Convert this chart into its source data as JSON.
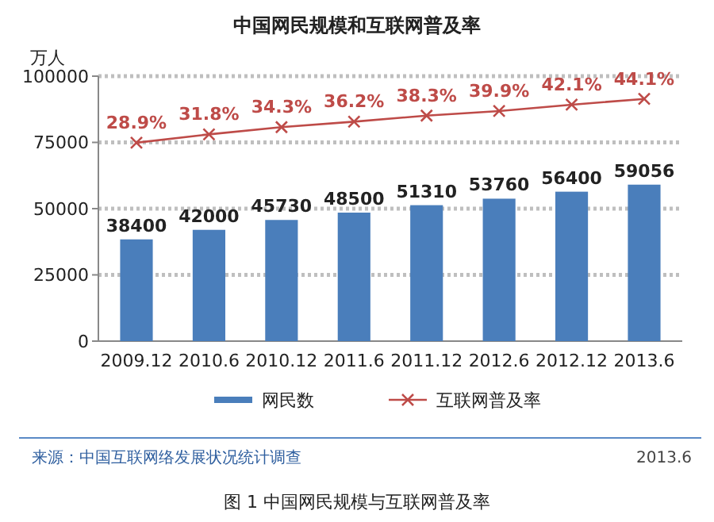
{
  "chart_data": {
    "type": "bar",
    "title": "中国网民规模和互联网普及率",
    "ylabel": "万人",
    "categories": [
      "2009.12",
      "2010.6",
      "2010.12",
      "2011.6",
      "2011.12",
      "2012.6",
      "2012.12",
      "2013.6"
    ],
    "series": [
      {
        "name": "网民数",
        "color": "#4a7ebb",
        "values": [
          38400,
          42000,
          45730,
          48500,
          51310,
          53760,
          56400,
          59056
        ]
      },
      {
        "name": "互联网普及率",
        "type": "line",
        "axis": "y2",
        "color": "#be4b48",
        "marker": "cross",
        "values": [
          28.9,
          31.8,
          34.3,
          36.2,
          38.3,
          39.9,
          42.1,
          44.1
        ],
        "value_labels": [
          "28.9%",
          "31.8%",
          "34.3%",
          "36.2%",
          "38.3%",
          "39.9%",
          "42.1%",
          "44.1%"
        ]
      }
    ],
    "data_labels": true,
    "ylim": [
      0,
      100000
    ],
    "yticks": [
      0,
      25000,
      50000,
      75000,
      100000
    ],
    "y2lim": [
      -40,
      52
    ],
    "tick_labels": [
      "x",
      "y"
    ],
    "grid": "y",
    "legend": "bottom",
    "annotations": [
      "来源：中国互联网络发展状况统计调查",
      "2013.6",
      "图 1 中国网民规模与互联网普及率"
    ]
  }
}
